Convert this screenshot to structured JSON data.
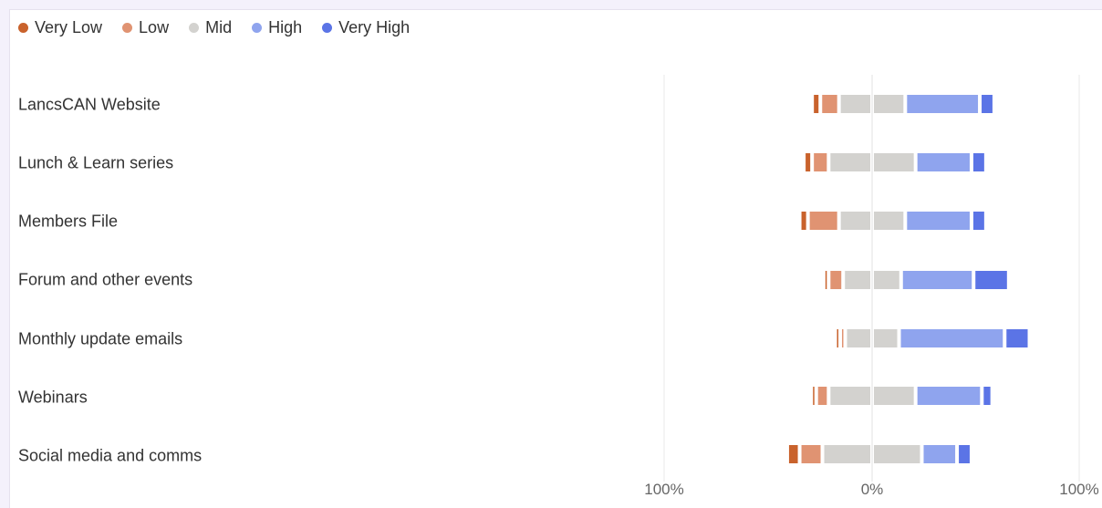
{
  "chart_data": {
    "type": "bar",
    "subtype": "diverging-stacked",
    "legend_position": "top-left",
    "categories": [
      "LancsCAN Website",
      "Lunch & Learn series",
      "Members File",
      "Forum and other events",
      "Monthly update emails",
      "Webinars",
      "Social media and comms"
    ],
    "series": [
      {
        "name": "Very Low",
        "color": "#c9622c",
        "values": [
          4,
          4,
          4,
          2,
          1,
          2,
          6
        ]
      },
      {
        "name": "Low",
        "color": "#e09372",
        "values": [
          9,
          8,
          15,
          7,
          1,
          6,
          11
        ]
      },
      {
        "name": "Mid",
        "color": "#d3d2cf",
        "values": [
          32,
          42,
          32,
          28,
          26,
          42,
          48
        ]
      },
      {
        "name": "High",
        "color": "#8fa4ee",
        "values": [
          36,
          27,
          32,
          35,
          51,
          32,
          17
        ]
      },
      {
        "name": "Very High",
        "color": "#5b74e6",
        "values": [
          7,
          7,
          7,
          17,
          12,
          5,
          7
        ]
      }
    ],
    "x_ticks": [
      "100%",
      "0%",
      "100%"
    ],
    "xlim": [
      -100,
      100
    ],
    "grid": true
  }
}
